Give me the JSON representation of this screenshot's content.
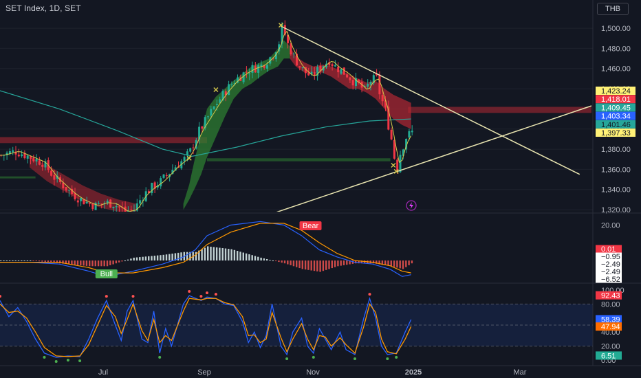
{
  "header": {
    "title": "SET Index, 1D, SET",
    "currency": "THB"
  },
  "colors": {
    "background": "#131722",
    "bull": "#22ab94",
    "bear": "#f23645",
    "trendline": "#e8e4b0",
    "ma_long": "#26a69a",
    "ma_fast": "#d4c84a",
    "cloud_up": "#2e7d32",
    "cloud_down": "#b22833",
    "line_blue": "#2962ff",
    "line_orange": "#ff9800"
  },
  "chart_data": [
    {
      "type": "candlestick",
      "name": "price",
      "x_axis": {
        "labels": [
          "Jul",
          "Sep",
          "Nov",
          "2025",
          "Mar"
        ]
      },
      "y_axis": {
        "ticks": [
          1320,
          1340,
          1360,
          1380,
          1400,
          1420,
          1440,
          1460,
          1480,
          1500
        ],
        "tick_labels": [
          "1,320.00",
          "1,340.00",
          "1,360.00",
          "1,380.00",
          "1,400.00",
          "1,420.00",
          "1,440.00",
          "1,460.00",
          "1,480.00",
          "1,500.00"
        ],
        "range": [
          1318,
          1513
        ]
      },
      "price_tags": [
        {
          "label": "1,423.24",
          "value": 1423.24,
          "bg": "#fff176",
          "fg": "#131722"
        },
        {
          "label": "1,418.01",
          "value": 1418.01,
          "bg": "#f23645",
          "fg": "#ffffff"
        },
        {
          "label": "1,409.45",
          "value": 1409.45,
          "bg": "#26a69a",
          "fg": "#ffffff"
        },
        {
          "label": "1,403.34",
          "value": 1403.34,
          "bg": "#2962ff",
          "fg": "#ffffff"
        },
        {
          "label": "1,401.46",
          "value": 1401.46,
          "bg": "#26a69a",
          "fg": "#131722"
        },
        {
          "label": "1,397.33",
          "value": 1397.33,
          "bg": "#fff176",
          "fg": "#131722"
        }
      ],
      "close_path": [
        [
          0,
          1374
        ],
        [
          5,
          1378
        ],
        [
          10,
          1372
        ],
        [
          14,
          1367
        ],
        [
          16,
          1360
        ],
        [
          18,
          1352
        ],
        [
          21,
          1344
        ],
        [
          24,
          1336
        ],
        [
          27,
          1330
        ],
        [
          30,
          1326
        ],
        [
          32,
          1324
        ],
        [
          35,
          1327
        ],
        [
          38,
          1326
        ],
        [
          40,
          1322
        ],
        [
          42,
          1318
        ],
        [
          45,
          1320
        ],
        [
          48,
          1334
        ],
        [
          51,
          1342
        ],
        [
          54,
          1348
        ],
        [
          57,
          1357
        ],
        [
          59,
          1363
        ],
        [
          62,
          1370
        ],
        [
          64,
          1378
        ],
        [
          67,
          1398
        ],
        [
          70,
          1412
        ],
        [
          73,
          1426
        ],
        [
          76,
          1438
        ],
        [
          79,
          1448
        ],
        [
          82,
          1455
        ],
        [
          85,
          1460
        ],
        [
          88,
          1463
        ],
        [
          90,
          1468
        ],
        [
          92,
          1474
        ],
        [
          94,
          1486
        ],
        [
          95,
          1500
        ],
        [
          96,
          1494
        ],
        [
          97,
          1484
        ],
        [
          99,
          1472
        ],
        [
          101,
          1462
        ],
        [
          103,
          1456
        ],
        [
          105,
          1452
        ],
        [
          107,
          1458
        ],
        [
          109,
          1464
        ],
        [
          111,
          1468
        ],
        [
          113,
          1462
        ],
        [
          115,
          1458
        ],
        [
          117,
          1454
        ],
        [
          119,
          1448
        ],
        [
          121,
          1444
        ],
        [
          123,
          1438
        ],
        [
          125,
          1448
        ],
        [
          127,
          1450
        ],
        [
          128,
          1436
        ],
        [
          130,
          1418
        ],
        [
          132,
          1390
        ],
        [
          133,
          1372
        ],
        [
          134,
          1362
        ],
        [
          135,
          1376
        ],
        [
          137,
          1392
        ],
        [
          139,
          1397
        ]
      ],
      "moving_average_long": [
        [
          0,
          1438
        ],
        [
          20,
          1420
        ],
        [
          40,
          1398
        ],
        [
          55,
          1380
        ],
        [
          65,
          1373
        ],
        [
          80,
          1382
        ],
        [
          95,
          1393
        ],
        [
          110,
          1402
        ],
        [
          125,
          1408
        ],
        [
          139,
          1410
        ]
      ],
      "cloud": [
        [
          62,
          1320,
          1326
        ],
        [
          64,
          1330,
          1345
        ],
        [
          66,
          1342,
          1372
        ],
        [
          68,
          1355,
          1395
        ],
        [
          70,
          1372,
          1420
        ],
        [
          73,
          1392,
          1432
        ],
        [
          76,
          1412,
          1440
        ],
        [
          79,
          1430,
          1448
        ],
        [
          82,
          1440,
          1455
        ],
        [
          85,
          1445,
          1462
        ],
        [
          88,
          1452,
          1466
        ],
        [
          91,
          1458,
          1470
        ],
        [
          94,
          1462,
          1480
        ],
        [
          96,
          1470,
          1488
        ],
        [
          98,
          1470,
          1482
        ],
        [
          100,
          1462,
          1472
        ],
        [
          103,
          1456,
          1466
        ],
        [
          106,
          1456,
          1462
        ],
        [
          109,
          1456,
          1464
        ],
        [
          112,
          1452,
          1462
        ],
        [
          115,
          1446,
          1458
        ],
        [
          118,
          1440,
          1454
        ],
        [
          121,
          1440,
          1450
        ],
        [
          124,
          1436,
          1446
        ],
        [
          127,
          1430,
          1448
        ],
        [
          130,
          1420,
          1440
        ],
        [
          133,
          1410,
          1434
        ],
        [
          136,
          1404,
          1430
        ],
        [
          139,
          1400,
          1426
        ]
      ],
      "zones": [
        {
          "from": 0,
          "to": 70,
          "y1": 1392,
          "y2": 1386,
          "color": "#b22833"
        },
        {
          "from": 138,
          "to": 200,
          "y1": 1422,
          "y2": 1416,
          "color": "#b22833"
        },
        {
          "from": 70,
          "to": 132,
          "y1": 1371,
          "y2": 1368,
          "color": "#2e7d32"
        },
        {
          "from": 0,
          "to": 12,
          "y1": 1353,
          "y2": 1351,
          "color": "#2e7d32"
        }
      ],
      "trendlines": [
        {
          "x1": 95,
          "y1": 1502,
          "x2": 196,
          "y2": 1355
        },
        {
          "x1": 92,
          "y1": 1316,
          "x2": 200,
          "y2": 1423
        }
      ]
    },
    {
      "type": "macd",
      "y_axis": {
        "tick_labels": [
          "20.00"
        ]
      },
      "value_tags": [
        {
          "label": "0.01",
          "bg": "#f23645",
          "fg": "#ffffff"
        },
        {
          "label": "−0.95",
          "bg": "#ffffff",
          "fg": "#131722"
        },
        {
          "label": "−2.49",
          "bg": "#ffffff",
          "fg": "#131722"
        },
        {
          "label": "−2.49",
          "bg": "#ffffff",
          "fg": "#131722"
        },
        {
          "label": "−6.52",
          "bg": "#ffffff",
          "fg": "#131722"
        }
      ],
      "signals": [
        {
          "label": "Bull",
          "x": 36,
          "kind": "bull"
        },
        {
          "label": "Bear",
          "x": 105,
          "kind": "bear"
        }
      ],
      "macd_line": [
        [
          0,
          -1
        ],
        [
          10,
          -1
        ],
        [
          20,
          -2
        ],
        [
          30,
          -6
        ],
        [
          36,
          -9
        ],
        [
          45,
          -6
        ],
        [
          55,
          -2
        ],
        [
          62,
          2
        ],
        [
          66,
          6
        ],
        [
          70,
          14
        ],
        [
          78,
          20
        ],
        [
          88,
          22
        ],
        [
          96,
          20
        ],
        [
          102,
          14
        ],
        [
          108,
          6
        ],
        [
          114,
          2
        ],
        [
          120,
          -1
        ],
        [
          126,
          -2
        ],
        [
          132,
          -5
        ],
        [
          136,
          -9
        ],
        [
          139,
          -8
        ]
      ],
      "signal_line": [
        [
          0,
          -1
        ],
        [
          10,
          -1
        ],
        [
          20,
          -1
        ],
        [
          30,
          -4
        ],
        [
          36,
          -7
        ],
        [
          45,
          -7
        ],
        [
          55,
          -4
        ],
        [
          62,
          -1
        ],
        [
          66,
          3
        ],
        [
          70,
          9
        ],
        [
          78,
          16
        ],
        [
          88,
          21
        ],
        [
          96,
          21
        ],
        [
          102,
          17
        ],
        [
          108,
          10
        ],
        [
          114,
          4
        ],
        [
          120,
          0
        ],
        [
          126,
          -1
        ],
        [
          132,
          -3
        ],
        [
          136,
          -6
        ],
        [
          139,
          -7
        ]
      ]
    },
    {
      "type": "stochastic",
      "y_axis": {
        "tick_labels": [
          "100.00",
          "80.00",
          "40.00",
          "20.00",
          "0.00"
        ],
        "range": [
          0,
          100
        ]
      },
      "value_tags": [
        {
          "label": "92.43",
          "value": 92.43,
          "bg": "#f23645",
          "fg": "#ffffff"
        },
        {
          "label": "58.39",
          "value": 58.39,
          "bg": "#2962ff",
          "fg": "#ffffff"
        },
        {
          "label": "47.94",
          "value": 47.94,
          "bg": "#ff6d00",
          "fg": "#ffffff"
        },
        {
          "label": "6.51",
          "value": 6.51,
          "bg": "#22ab94",
          "fg": "#ffffff"
        }
      ],
      "k_line": [
        [
          0,
          85
        ],
        [
          3,
          62
        ],
        [
          6,
          75
        ],
        [
          9,
          55
        ],
        [
          12,
          30
        ],
        [
          15,
          10
        ],
        [
          19,
          4
        ],
        [
          23,
          6
        ],
        [
          27,
          5
        ],
        [
          30,
          30
        ],
        [
          33,
          60
        ],
        [
          36,
          85
        ],
        [
          39,
          50
        ],
        [
          41,
          28
        ],
        [
          43,
          70
        ],
        [
          45,
          85
        ],
        [
          48,
          30
        ],
        [
          50,
          25
        ],
        [
          52,
          70
        ],
        [
          54,
          10
        ],
        [
          56,
          45
        ],
        [
          58,
          20
        ],
        [
          62,
          80
        ],
        [
          64,
          92
        ],
        [
          68,
          85
        ],
        [
          70,
          90
        ],
        [
          73,
          88
        ],
        [
          76,
          80
        ],
        [
          79,
          78
        ],
        [
          82,
          55
        ],
        [
          84,
          25
        ],
        [
          86,
          40
        ],
        [
          88,
          18
        ],
        [
          90,
          35
        ],
        [
          92,
          80
        ],
        [
          95,
          20
        ],
        [
          97,
          8
        ],
        [
          99,
          40
        ],
        [
          102,
          60
        ],
        [
          104,
          20
        ],
        [
          106,
          10
        ],
        [
          108,
          45
        ],
        [
          110,
          30
        ],
        [
          112,
          15
        ],
        [
          115,
          40
        ],
        [
          117,
          15
        ],
        [
          120,
          8
        ],
        [
          123,
          60
        ],
        [
          125,
          88
        ],
        [
          127,
          60
        ],
        [
          129,
          20
        ],
        [
          131,
          8
        ],
        [
          134,
          10
        ],
        [
          137,
          40
        ],
        [
          139,
          58
        ]
      ],
      "d_line": [
        [
          0,
          80
        ],
        [
          3,
          68
        ],
        [
          6,
          70
        ],
        [
          9,
          60
        ],
        [
          12,
          40
        ],
        [
          15,
          18
        ],
        [
          19,
          6
        ],
        [
          23,
          5
        ],
        [
          27,
          6
        ],
        [
          30,
          22
        ],
        [
          33,
          50
        ],
        [
          36,
          78
        ],
        [
          39,
          62
        ],
        [
          41,
          38
        ],
        [
          43,
          58
        ],
        [
          45,
          80
        ],
        [
          48,
          42
        ],
        [
          50,
          28
        ],
        [
          52,
          58
        ],
        [
          54,
          25
        ],
        [
          56,
          35
        ],
        [
          58,
          28
        ],
        [
          62,
          70
        ],
        [
          64,
          88
        ],
        [
          68,
          86
        ],
        [
          70,
          88
        ],
        [
          73,
          88
        ],
        [
          76,
          82
        ],
        [
          79,
          79
        ],
        [
          82,
          62
        ],
        [
          84,
          35
        ],
        [
          86,
          36
        ],
        [
          88,
          25
        ],
        [
          90,
          30
        ],
        [
          92,
          68
        ],
        [
          95,
          32
        ],
        [
          97,
          12
        ],
        [
          99,
          30
        ],
        [
          102,
          52
        ],
        [
          104,
          30
        ],
        [
          106,
          15
        ],
        [
          108,
          35
        ],
        [
          110,
          33
        ],
        [
          112,
          20
        ],
        [
          115,
          32
        ],
        [
          117,
          22
        ],
        [
          120,
          10
        ],
        [
          123,
          48
        ],
        [
          125,
          80
        ],
        [
          127,
          68
        ],
        [
          129,
          30
        ],
        [
          131,
          12
        ],
        [
          134,
          9
        ],
        [
          137,
          30
        ],
        [
          139,
          48
        ]
      ]
    }
  ]
}
